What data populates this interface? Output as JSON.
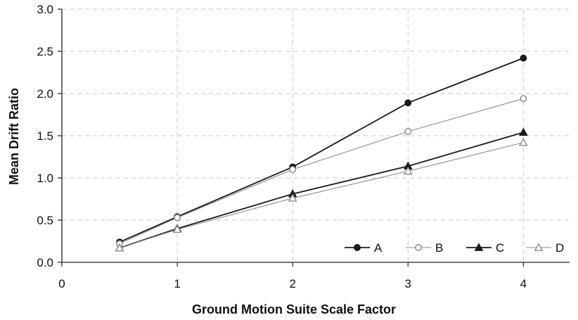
{
  "chart_data": {
    "type": "line",
    "title": "",
    "xlabel": "Ground Motion Suite Scale Factor",
    "ylabel": "Mean Drift Ratio",
    "xlim": [
      0,
      4.4
    ],
    "ylim": [
      0,
      3.0
    ],
    "xticks": [
      "0",
      "1",
      "2",
      "3",
      "4"
    ],
    "yticks": [
      "0.0",
      "0.5",
      "1.0",
      "1.5",
      "2.0",
      "2.5",
      "3.0"
    ],
    "grid": true,
    "legend_position": "bottom-right",
    "x": [
      0.5,
      1,
      2,
      3,
      4
    ],
    "series": [
      {
        "name": "A",
        "values": [
          0.24,
          0.54,
          1.13,
          1.89,
          2.42
        ],
        "color": "#1a1a1a",
        "marker": "filled-circle"
      },
      {
        "name": "B",
        "values": [
          0.22,
          0.53,
          1.1,
          1.55,
          1.94
        ],
        "color": "#8c8c8c",
        "marker": "open-circle"
      },
      {
        "name": "C",
        "values": [
          0.17,
          0.4,
          0.81,
          1.14,
          1.54
        ],
        "color": "#1a1a1a",
        "marker": "filled-triangle"
      },
      {
        "name": "D",
        "values": [
          0.17,
          0.39,
          0.76,
          1.08,
          1.42
        ],
        "color": "#8c8c8c",
        "marker": "open-triangle"
      }
    ]
  }
}
